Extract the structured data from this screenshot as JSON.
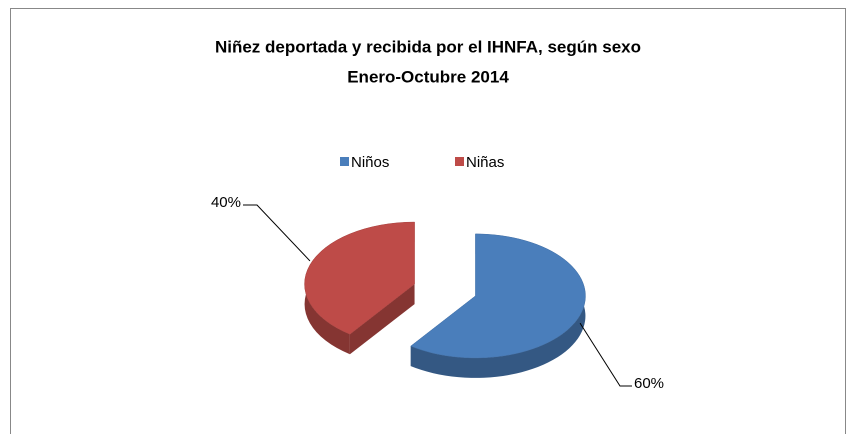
{
  "chart_data": {
    "type": "pie3d",
    "title": "Niñez deportada y recibida por el IHNFA, según sexo",
    "subtitle": "Enero-Octubre 2014",
    "categories": [
      "Niños",
      "Niñas"
    ],
    "values": [
      60,
      40
    ],
    "value_labels": [
      "60%",
      "40%"
    ],
    "colors": [
      "#4a7ebb",
      "#be4b48"
    ],
    "legend": "top"
  }
}
